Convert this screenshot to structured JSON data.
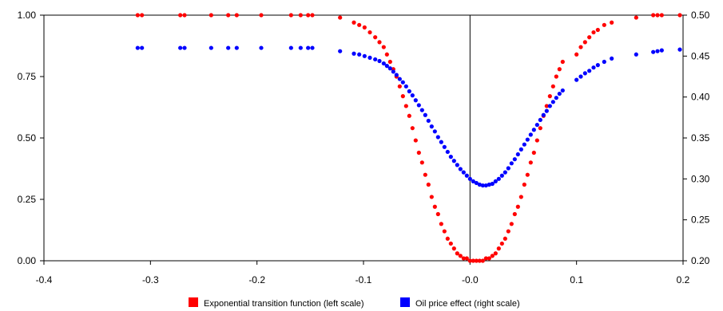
{
  "chart_data": {
    "type": "scatter",
    "title": "",
    "xlabel": "",
    "ylabel_left": "",
    "ylabel_right": "",
    "xlim": [
      -0.4,
      0.2
    ],
    "ylim_left": [
      0.0,
      1.0
    ],
    "ylim_right": [
      0.2,
      0.5
    ],
    "x_ticks": [
      "-0.4",
      "-0.3",
      "-0.2",
      "-0.1",
      "-0.0",
      "0.1",
      "0.2"
    ],
    "y_left_ticks": [
      "0.00",
      "0.25",
      "0.50",
      "0.75",
      "1.00"
    ],
    "y_right_ticks": [
      "0.20",
      "0.25",
      "0.30",
      "0.35",
      "0.40",
      "0.45",
      "0.50"
    ],
    "vertical_reference_line_x": 0.0,
    "grid": false,
    "legend_position": "bottom",
    "center": 0.022,
    "series": [
      {
        "name": "Exponential transition function (left scale)",
        "color": "#ff0000",
        "axis": "left",
        "x": [
          -0.312,
          -0.308,
          -0.272,
          -0.268,
          -0.243,
          -0.227,
          -0.219,
          -0.196,
          -0.168,
          -0.159,
          -0.152,
          -0.148,
          -0.122,
          -0.109,
          -0.104,
          -0.099,
          -0.094,
          -0.089,
          -0.085,
          -0.081,
          -0.078,
          -0.075,
          -0.072,
          -0.069,
          -0.066,
          -0.063,
          -0.06,
          -0.057,
          -0.054,
          -0.051,
          -0.048,
          -0.045,
          -0.042,
          -0.039,
          -0.036,
          -0.033,
          -0.03,
          -0.027,
          -0.024,
          -0.021,
          -0.018,
          -0.015,
          -0.012,
          -0.009,
          -0.006,
          -0.003,
          0.0,
          0.003,
          0.006,
          0.009,
          0.012,
          0.015,
          0.018,
          0.021,
          0.024,
          0.027,
          0.03,
          0.033,
          0.036,
          0.039,
          0.042,
          0.045,
          0.048,
          0.051,
          0.054,
          0.057,
          0.06,
          0.063,
          0.066,
          0.069,
          0.072,
          0.075,
          0.078,
          0.081,
          0.084,
          0.087,
          0.1,
          0.104,
          0.108,
          0.112,
          0.116,
          0.12,
          0.126,
          0.133,
          0.156,
          0.172,
          0.176,
          0.18,
          0.197
        ],
        "y": [
          1.0,
          1.0,
          1.0,
          1.0,
          1.0,
          1.0,
          1.0,
          1.0,
          1.0,
          1.0,
          1.0,
          1.0,
          0.99,
          0.97,
          0.96,
          0.95,
          0.93,
          0.91,
          0.89,
          0.87,
          0.84,
          0.81,
          0.78,
          0.75,
          0.71,
          0.67,
          0.63,
          0.59,
          0.54,
          0.49,
          0.44,
          0.4,
          0.35,
          0.31,
          0.26,
          0.22,
          0.19,
          0.15,
          0.12,
          0.09,
          0.07,
          0.05,
          0.03,
          0.02,
          0.01,
          0.01,
          0.0,
          0.0,
          0.0,
          0.0,
          0.0,
          0.01,
          0.01,
          0.02,
          0.03,
          0.05,
          0.07,
          0.09,
          0.12,
          0.15,
          0.19,
          0.22,
          0.26,
          0.31,
          0.35,
          0.4,
          0.44,
          0.49,
          0.54,
          0.59,
          0.63,
          0.67,
          0.71,
          0.75,
          0.78,
          0.81,
          0.84,
          0.87,
          0.89,
          0.91,
          0.93,
          0.94,
          0.96,
          0.97,
          0.99,
          1.0,
          1.0,
          1.0,
          1.0
        ]
      },
      {
        "name": "Oil price effect (right scale)",
        "color": "#0000ff",
        "axis": "right",
        "x": [
          -0.312,
          -0.308,
          -0.272,
          -0.268,
          -0.243,
          -0.227,
          -0.219,
          -0.196,
          -0.168,
          -0.159,
          -0.152,
          -0.148,
          -0.122,
          -0.109,
          -0.104,
          -0.099,
          -0.094,
          -0.089,
          -0.085,
          -0.081,
          -0.078,
          -0.075,
          -0.072,
          -0.069,
          -0.066,
          -0.063,
          -0.06,
          -0.057,
          -0.054,
          -0.051,
          -0.048,
          -0.045,
          -0.042,
          -0.039,
          -0.036,
          -0.033,
          -0.03,
          -0.027,
          -0.024,
          -0.021,
          -0.018,
          -0.015,
          -0.012,
          -0.009,
          -0.006,
          -0.003,
          0.0,
          0.003,
          0.006,
          0.009,
          0.012,
          0.015,
          0.018,
          0.021,
          0.024,
          0.027,
          0.03,
          0.033,
          0.036,
          0.039,
          0.042,
          0.045,
          0.048,
          0.051,
          0.054,
          0.057,
          0.06,
          0.063,
          0.066,
          0.069,
          0.072,
          0.075,
          0.078,
          0.081,
          0.084,
          0.087,
          0.1,
          0.104,
          0.108,
          0.112,
          0.116,
          0.12,
          0.126,
          0.133,
          0.156,
          0.172,
          0.176,
          0.18,
          0.197
        ],
        "y": [
          0.46,
          0.46,
          0.46,
          0.46,
          0.46,
          0.46,
          0.46,
          0.46,
          0.46,
          0.46,
          0.46,
          0.46,
          0.456,
          0.453,
          0.452,
          0.45,
          0.448,
          0.446,
          0.444,
          0.441,
          0.438,
          0.435,
          0.431,
          0.427,
          0.422,
          0.418,
          0.413,
          0.407,
          0.402,
          0.396,
          0.39,
          0.384,
          0.378,
          0.371,
          0.364,
          0.358,
          0.351,
          0.345,
          0.339,
          0.333,
          0.327,
          0.322,
          0.317,
          0.312,
          0.308,
          0.304,
          0.3,
          0.297,
          0.295,
          0.293,
          0.292,
          0.292,
          0.293,
          0.294,
          0.297,
          0.3,
          0.304,
          0.308,
          0.313,
          0.319,
          0.324,
          0.33,
          0.336,
          0.342,
          0.348,
          0.354,
          0.36,
          0.366,
          0.372,
          0.378,
          0.383,
          0.389,
          0.394,
          0.399,
          0.404,
          0.408,
          0.421,
          0.425,
          0.429,
          0.432,
          0.436,
          0.439,
          0.443,
          0.447,
          0.452,
          0.455,
          0.456,
          0.457,
          0.458
        ]
      }
    ]
  }
}
